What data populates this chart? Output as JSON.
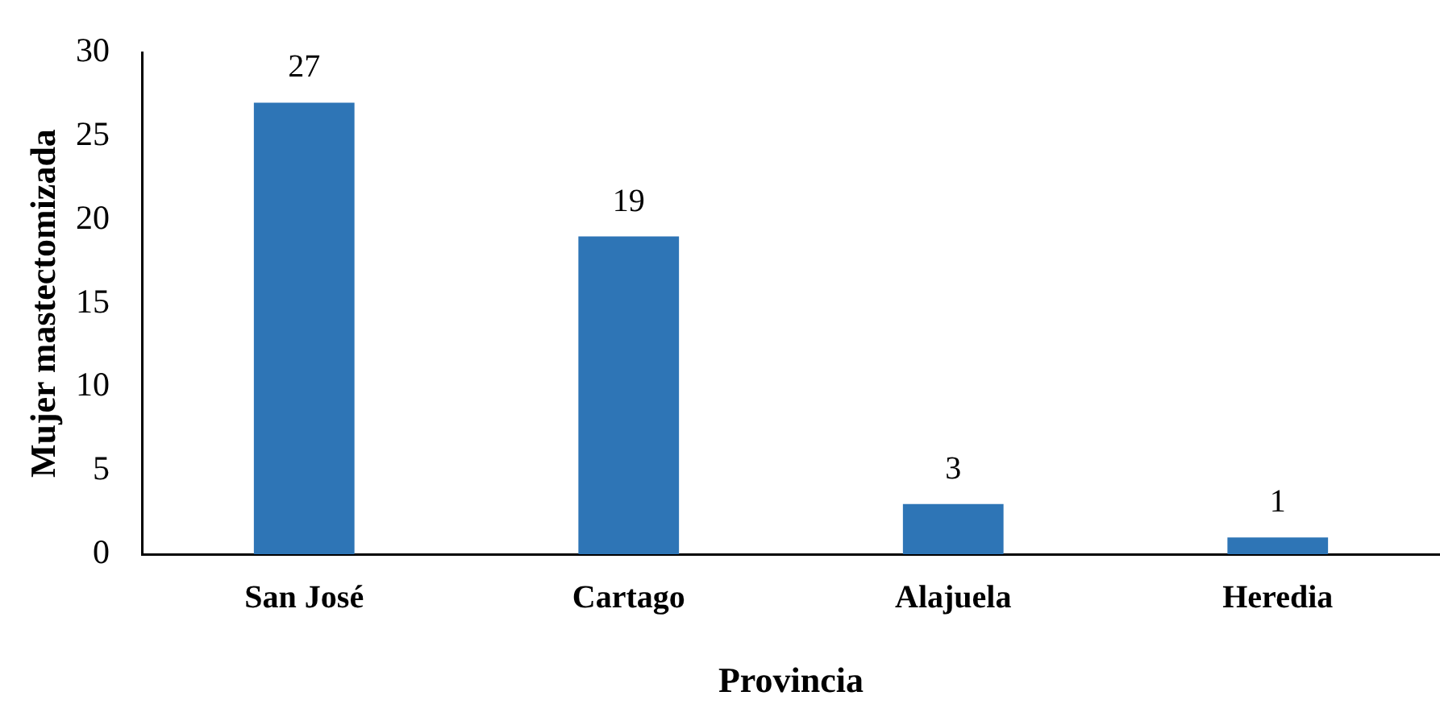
{
  "chart_data": {
    "type": "bar",
    "xlabel": "Provincia",
    "ylabel": "Mujer mastectomizada",
    "categories": [
      "San José",
      "Cartago",
      "Alajuela",
      "Heredia"
    ],
    "values": [
      27,
      19,
      3,
      1
    ],
    "color": "#2e75b6",
    "ylim": [
      0,
      30
    ],
    "yticks": [
      0,
      5,
      10,
      15,
      20,
      25,
      30
    ],
    "data_labels": true
  }
}
